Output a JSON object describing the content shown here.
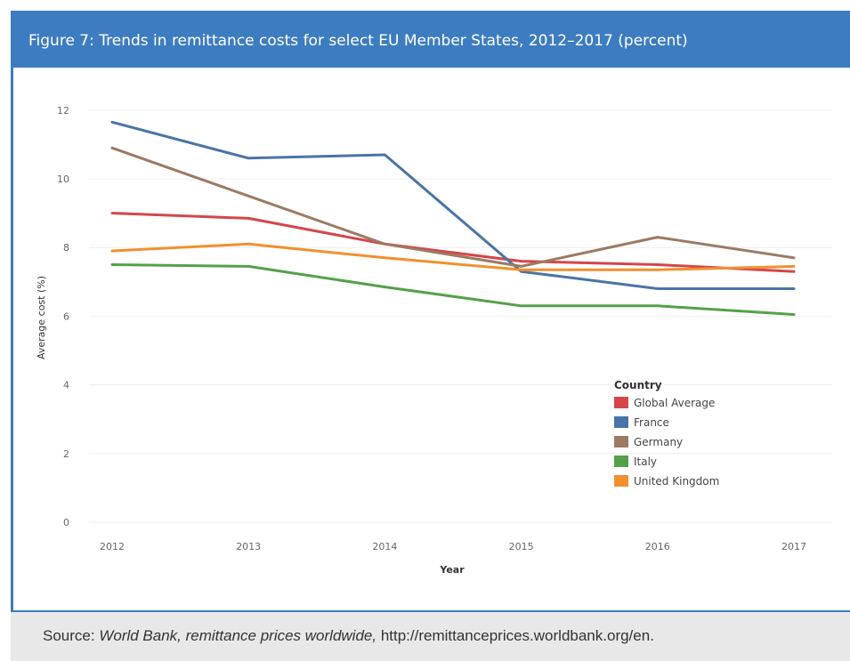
{
  "figure": {
    "title": "Figure 7: Trends in remittance costs for select EU Member States, 2012–2017 (percent)"
  },
  "source": {
    "prefix": "Source: ",
    "italic": "World Bank, remittance prices worldwide,",
    "url": " http://remittanceprices.worldbank.org/en."
  },
  "chart_data": {
    "type": "line",
    "title": "",
    "xlabel": "Year",
    "ylabel": "Average cost (%)",
    "categories": [
      "2012",
      "2013",
      "2014",
      "2015",
      "2016",
      "2017"
    ],
    "ylim": [
      0,
      12
    ],
    "yticks": [
      "0",
      "2",
      "4",
      "6",
      "8",
      "10",
      "12"
    ],
    "grid": true,
    "legend": {
      "title": "Country",
      "placement": "right"
    },
    "series": [
      {
        "name": "Global Average",
        "color": "#d6454a",
        "values": [
          9.0,
          8.85,
          8.1,
          7.6,
          7.5,
          7.3
        ]
      },
      {
        "name": "France",
        "color": "#4a74a7",
        "values": [
          11.65,
          10.6,
          10.7,
          7.3,
          6.8,
          6.8
        ]
      },
      {
        "name": "Germany",
        "color": "#9c7a63",
        "values": [
          10.9,
          9.5,
          8.1,
          7.45,
          8.3,
          7.7
        ]
      },
      {
        "name": "Italy",
        "color": "#55a04a",
        "values": [
          7.5,
          7.45,
          6.85,
          6.3,
          6.3,
          6.05
        ]
      },
      {
        "name": "United Kingdom",
        "color": "#f28f2f",
        "values": [
          7.9,
          8.1,
          7.7,
          7.35,
          7.35,
          7.45
        ]
      }
    ]
  }
}
